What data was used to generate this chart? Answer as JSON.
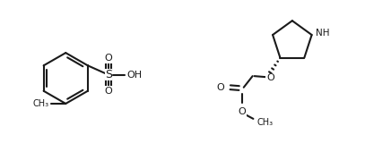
{
  "background_color": "#ffffff",
  "bond_color": "#1a1a1a",
  "text_color": "#1a1a1a",
  "line_width": 1.5,
  "fig_width": 4.07,
  "fig_height": 1.79,
  "dpi": 100,
  "font_size": 7.5,
  "xlim": [
    0,
    10
  ],
  "ylim": [
    0,
    4.5
  ]
}
